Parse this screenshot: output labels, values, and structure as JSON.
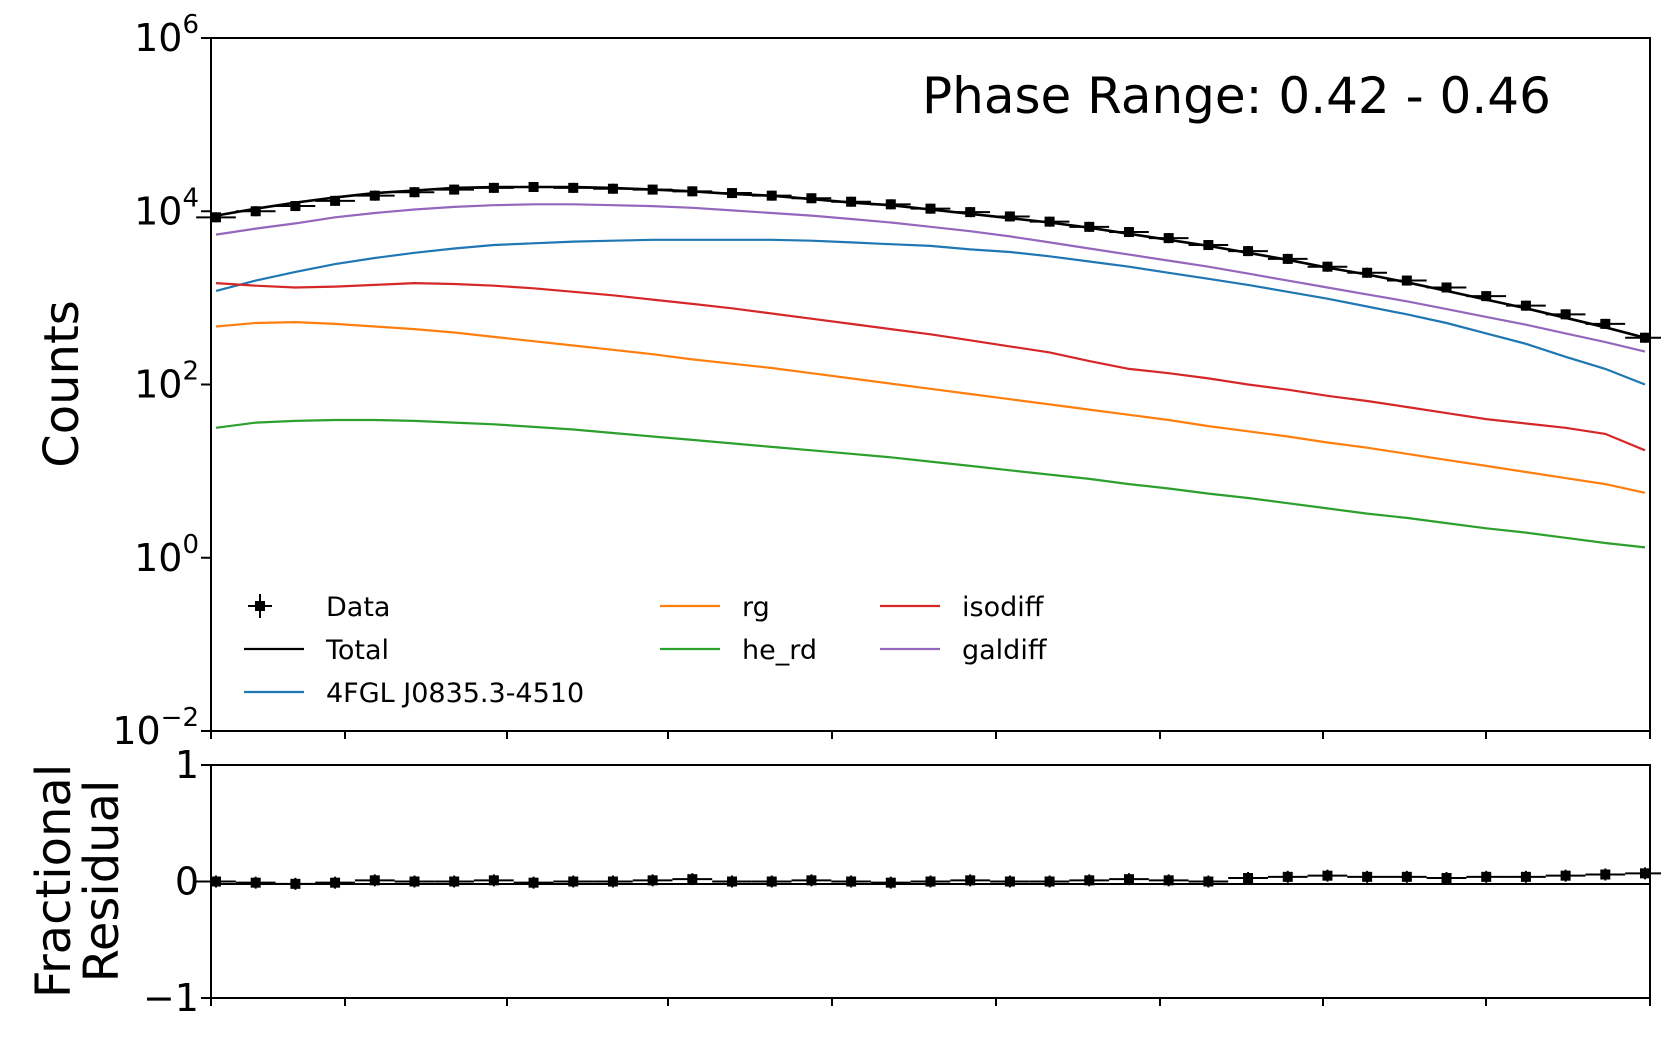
{
  "chart_data": [
    {
      "type": "line",
      "panel": "main",
      "ylabel": "Counts",
      "yscale": "log",
      "ylim_exp": [
        -2,
        6
      ],
      "yticks": [
        {
          "base": "10",
          "exp": "6",
          "value": 6
        },
        {
          "base": "10",
          "exp": "4",
          "value": 4
        },
        {
          "base": "10",
          "exp": "2",
          "value": 2
        },
        {
          "base": "10",
          "exp": "0",
          "value": 0
        },
        {
          "base": "10",
          "exp": "−2",
          "value": -2
        }
      ],
      "xlim": [
        0,
        36
      ],
      "annotation": "Phase Range: 0.42 - 0.46",
      "legend_location": "lower-left",
      "data_points": {
        "name": "Data",
        "color": "#000000",
        "log10_counts": [
          3.93,
          4.0,
          4.06,
          4.12,
          4.18,
          4.22,
          4.25,
          4.27,
          4.28,
          4.27,
          4.26,
          4.25,
          4.23,
          4.21,
          4.18,
          4.15,
          4.11,
          4.08,
          4.03,
          3.99,
          3.94,
          3.88,
          3.82,
          3.76,
          3.69,
          3.61,
          3.54,
          3.45,
          3.36,
          3.29,
          3.2,
          3.12,
          3.02,
          2.91,
          2.81,
          2.7,
          2.54
        ]
      },
      "series": [
        {
          "name": "Total",
          "color": "#000000",
          "log10_values": [
            3.95,
            4.03,
            4.1,
            4.16,
            4.21,
            4.24,
            4.27,
            4.28,
            4.28,
            4.28,
            4.27,
            4.25,
            4.23,
            4.2,
            4.18,
            4.14,
            4.1,
            4.07,
            4.02,
            3.97,
            3.92,
            3.87,
            3.81,
            3.74,
            3.67,
            3.6,
            3.52,
            3.44,
            3.35,
            3.27,
            3.18,
            3.08,
            2.98,
            2.88,
            2.77,
            2.66,
            2.54
          ]
        },
        {
          "name": "4FGL J0835.3-4510",
          "color": "#1f77b4",
          "log10_values": [
            3.08,
            3.2,
            3.3,
            3.39,
            3.46,
            3.52,
            3.57,
            3.61,
            3.63,
            3.65,
            3.66,
            3.67,
            3.67,
            3.67,
            3.67,
            3.66,
            3.64,
            3.62,
            3.6,
            3.56,
            3.53,
            3.48,
            3.42,
            3.36,
            3.29,
            3.22,
            3.15,
            3.07,
            2.99,
            2.9,
            2.81,
            2.71,
            2.59,
            2.47,
            2.32,
            2.18,
            2.0
          ]
        },
        {
          "name": "rg",
          "color": "#ff7f0e",
          "log10_values": [
            2.67,
            2.71,
            2.72,
            2.7,
            2.67,
            2.64,
            2.6,
            2.55,
            2.5,
            2.45,
            2.4,
            2.35,
            2.29,
            2.24,
            2.19,
            2.13,
            2.07,
            2.01,
            1.95,
            1.89,
            1.83,
            1.77,
            1.71,
            1.65,
            1.59,
            1.52,
            1.46,
            1.4,
            1.33,
            1.27,
            1.2,
            1.13,
            1.06,
            0.99,
            0.92,
            0.85,
            0.75
          ]
        },
        {
          "name": "he_rd",
          "color": "#2ca02c",
          "log10_values": [
            1.5,
            1.56,
            1.58,
            1.59,
            1.59,
            1.58,
            1.56,
            1.54,
            1.51,
            1.48,
            1.44,
            1.4,
            1.36,
            1.32,
            1.28,
            1.24,
            1.2,
            1.16,
            1.11,
            1.06,
            1.01,
            0.96,
            0.91,
            0.85,
            0.8,
            0.74,
            0.69,
            0.63,
            0.57,
            0.51,
            0.46,
            0.4,
            0.34,
            0.29,
            0.23,
            0.17,
            0.12
          ]
        },
        {
          "name": "isodiff",
          "color": "#d62728",
          "log10_values": [
            3.17,
            3.14,
            3.12,
            3.13,
            3.15,
            3.17,
            3.16,
            3.14,
            3.11,
            3.07,
            3.03,
            2.98,
            2.93,
            2.88,
            2.82,
            2.76,
            2.7,
            2.64,
            2.58,
            2.51,
            2.44,
            2.37,
            2.27,
            2.18,
            2.13,
            2.07,
            2.0,
            1.94,
            1.87,
            1.81,
            1.74,
            1.67,
            1.6,
            1.55,
            1.5,
            1.43,
            1.24
          ]
        },
        {
          "name": "galdiff",
          "color": "#9467bd",
          "log10_values": [
            3.73,
            3.8,
            3.86,
            3.93,
            3.98,
            4.02,
            4.05,
            4.07,
            4.08,
            4.08,
            4.07,
            4.06,
            4.04,
            4.01,
            3.98,
            3.95,
            3.91,
            3.87,
            3.82,
            3.77,
            3.71,
            3.64,
            3.57,
            3.5,
            3.43,
            3.36,
            3.28,
            3.2,
            3.12,
            3.04,
            2.96,
            2.87,
            2.78,
            2.69,
            2.59,
            2.49,
            2.38
          ]
        }
      ],
      "legend": {
        "entries": [
          "Data",
          "Total",
          "4FGL J0835.3-4510",
          "rg",
          "he_rd",
          "isodiff",
          "galdiff"
        ]
      }
    },
    {
      "type": "scatter",
      "panel": "residual",
      "ylabel_lines": [
        "Fractional",
        "Residual"
      ],
      "ylim": [
        -1,
        1
      ],
      "yticks": [
        "1",
        "0",
        "−1"
      ],
      "reference_line": 0,
      "residuals": [
        0.0,
        -0.01,
        -0.02,
        -0.01,
        0.01,
        0.0,
        0.0,
        0.01,
        -0.01,
        0.0,
        0.0,
        0.01,
        0.02,
        0.0,
        0.0,
        0.01,
        0.0,
        -0.01,
        0.0,
        0.01,
        0.0,
        0.0,
        0.01,
        0.02,
        0.01,
        0.0,
        0.03,
        0.04,
        0.05,
        0.04,
        0.04,
        0.03,
        0.04,
        0.04,
        0.05,
        0.06,
        0.07
      ]
    }
  ]
}
